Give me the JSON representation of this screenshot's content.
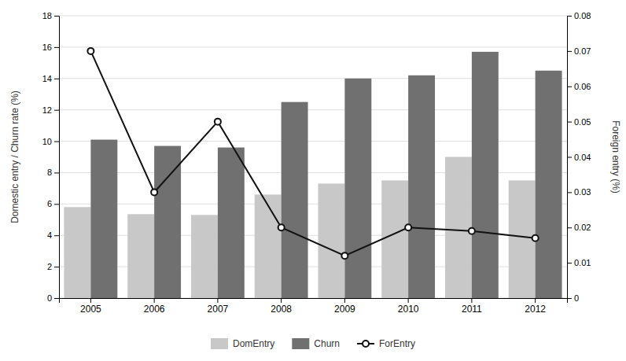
{
  "chart_data": {
    "type": "bar",
    "categories": [
      "2005",
      "2006",
      "2007",
      "2008",
      "2009",
      "2010",
      "2011",
      "2012"
    ],
    "series": [
      {
        "name": "DomEntry",
        "type": "bar",
        "color": "#c8c8c8",
        "values": [
          5.8,
          5.35,
          5.3,
          6.6,
          7.3,
          7.5,
          9.0,
          7.5
        ]
      },
      {
        "name": "Churn",
        "type": "bar",
        "color": "#707070",
        "values": [
          10.1,
          9.7,
          9.6,
          12.5,
          14.0,
          14.2,
          15.7,
          14.5
        ]
      },
      {
        "name": "ForEntry",
        "type": "line",
        "axis": "y2",
        "color": "#111111",
        "marker": "circle",
        "line_style": "solid",
        "values": [
          0.07,
          0.03,
          0.05,
          0.02,
          0.012,
          0.02,
          0.019,
          0.017
        ]
      }
    ],
    "y_label": "Domestic entry / Churn rate (%)",
    "y2_label": "Foreign entry (%)",
    "ylim": [
      0,
      18
    ],
    "yticks": [
      0,
      2,
      4,
      6,
      8,
      10,
      12,
      14,
      16,
      18
    ],
    "y2lim": [
      0,
      0.08
    ],
    "y2ticks": [
      0,
      0.01,
      0.02,
      0.03,
      0.04,
      0.05,
      0.06,
      0.07,
      0.08
    ],
    "grid": true,
    "legend": "bottom"
  }
}
